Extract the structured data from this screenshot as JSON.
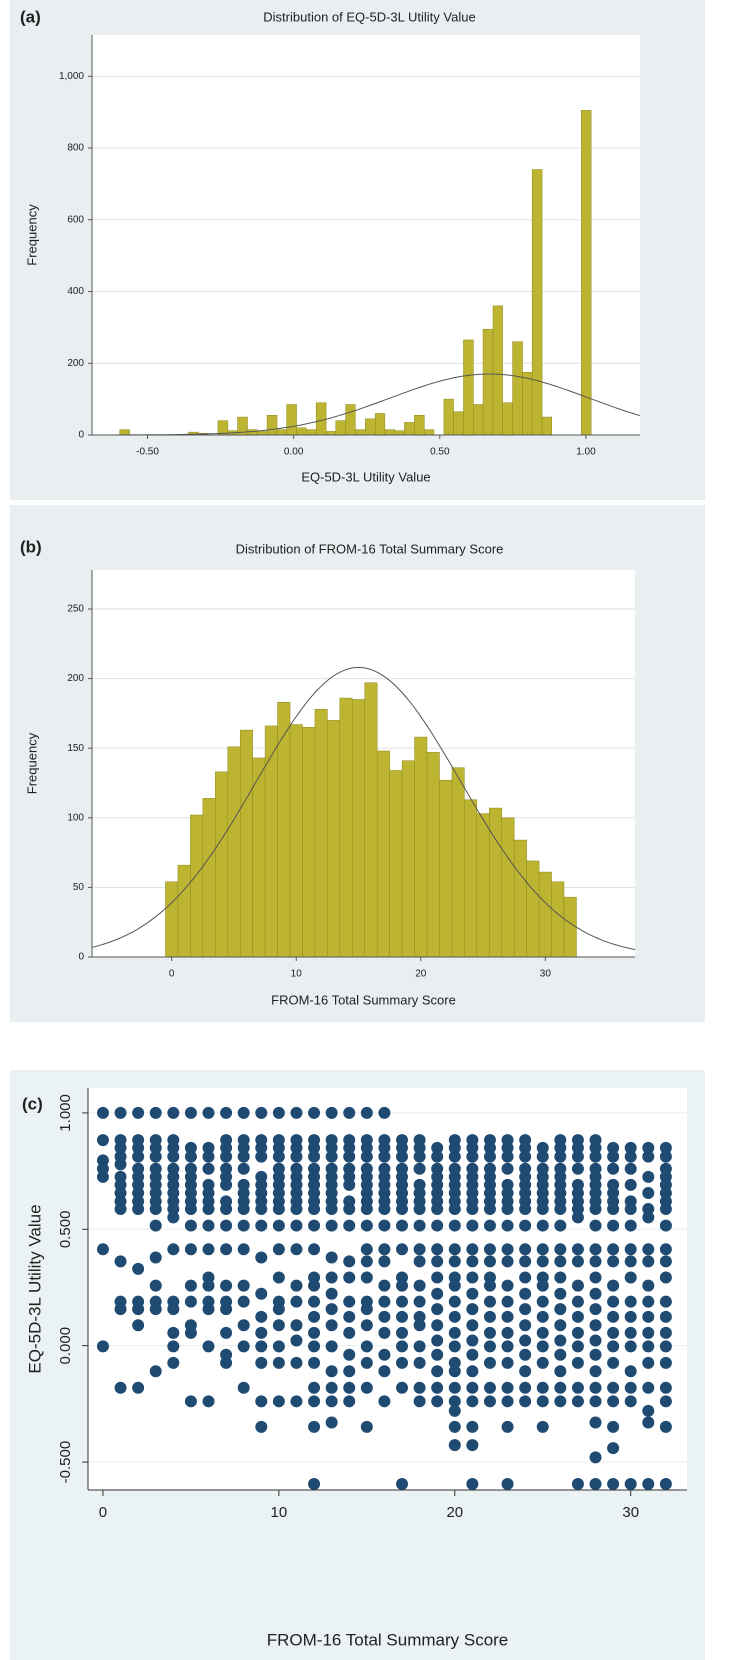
{
  "chart_data": [
    {
      "type": "histogram",
      "panel_label": "(a)",
      "title": "Distribution of EQ-5D-3L Utility Value",
      "x_label": "EQ-5D-3L Utility Value",
      "y_label": "Frequency",
      "color": "#bdb531",
      "curve_color": "#555555",
      "bins": [
        -0.595,
        -0.561,
        -0.528,
        -0.494,
        -0.461,
        -0.427,
        -0.393,
        -0.36,
        -0.326,
        -0.293,
        -0.259,
        -0.225,
        -0.192,
        -0.158,
        -0.125,
        -0.091,
        -0.057,
        -0.024,
        0.01,
        0.043,
        0.077,
        0.111,
        0.144,
        0.178,
        0.211,
        0.245,
        0.279,
        0.312,
        0.346,
        0.379,
        0.413,
        0.447,
        0.48,
        0.514,
        0.547,
        0.581,
        0.615,
        0.648,
        0.682,
        0.715,
        0.749,
        0.783,
        0.816,
        0.85,
        0.883,
        0.917,
        0.951,
        0.984,
        1.018,
        1.051
      ],
      "values": [
        15,
        0,
        0,
        0,
        0,
        0,
        0,
        8,
        5,
        0,
        40,
        12,
        50,
        15,
        10,
        55,
        15,
        85,
        20,
        15,
        90,
        10,
        40,
        85,
        15,
        45,
        60,
        15,
        12,
        35,
        55,
        15,
        0,
        100,
        65,
        265,
        85,
        295,
        360,
        90,
        260,
        175,
        740,
        50,
        0,
        0,
        0,
        905,
        0
      ],
      "curve": {
        "mean": 0.67,
        "sd": 0.34,
        "peak": 170
      },
      "xlim": [
        -0.69,
        1.185
      ],
      "ylim": [
        0,
        1115
      ],
      "xticks": [
        {
          "value": -0.5,
          "label": "-0.50"
        },
        {
          "value": 0,
          "label": "0.00"
        },
        {
          "value": 0.5,
          "label": "0.50"
        },
        {
          "value": 1,
          "label": "1.00"
        }
      ],
      "yticks": [
        0,
        200,
        400,
        600,
        800,
        {
          "value": 1000,
          "label": "1,000"
        }
      ],
      "grid": true
    },
    {
      "type": "histogram",
      "panel_label": "(b)",
      "title": "Distribution of FROM-16 Total Summary Score",
      "x_label": "FROM-16 Total Summary Score",
      "y_label": "Frequency",
      "color": "#bdb531",
      "curve_color": "#555555",
      "bins": [
        -0.5,
        0.5,
        1.5,
        2.5,
        3.5,
        4.5,
        5.5,
        6.5,
        7.5,
        8.5,
        9.5,
        10.5,
        11.5,
        12.5,
        13.5,
        14.5,
        15.5,
        16.5,
        17.5,
        18.5,
        19.5,
        20.5,
        21.5,
        22.5,
        23.5,
        24.5,
        25.5,
        26.5,
        27.5,
        28.5,
        29.5,
        30.5,
        31.5,
        32.5
      ],
      "values": [
        54,
        66,
        102,
        114,
        133,
        151,
        163,
        143,
        166,
        183,
        167,
        165,
        178,
        170,
        186,
        185,
        197,
        148,
        134,
        141,
        158,
        147,
        127,
        136,
        113,
        103,
        107,
        100,
        84,
        69,
        61,
        54,
        43
      ],
      "curve": {
        "mean": 15,
        "sd": 8.2,
        "peak": 208
      },
      "xlim": [
        -6.4,
        37.2
      ],
      "ylim": [
        0,
        278
      ],
      "xticks": [
        0,
        10,
        20,
        30
      ],
      "yticks": [
        0,
        50,
        100,
        150,
        200,
        250
      ],
      "grid": true
    },
    {
      "type": "scatter",
      "panel_label": "(c)",
      "x_label": "FROM-16 Total Summary Score",
      "y_label": "EQ-5D-3L Utility Value",
      "color": "#1f4a72",
      "x": [
        0,
        1,
        2,
        3,
        4,
        5,
        6,
        7,
        8,
        9,
        10,
        11,
        12,
        13,
        14,
        15,
        16,
        17,
        18,
        19,
        20,
        21,
        22,
        23,
        24,
        25,
        26,
        27,
        28,
        29,
        30,
        31,
        32
      ],
      "values": [
        [
          1.0,
          0.883,
          0.796,
          0.76,
          0.725,
          0.414,
          -0.003
        ],
        [
          1.0,
          0.883,
          0.85,
          0.812,
          0.779,
          0.725,
          0.691,
          0.656,
          0.62,
          0.587,
          0.362,
          0.189,
          0.157,
          -0.181
        ],
        [
          1.0,
          0.883,
          0.85,
          0.812,
          0.76,
          0.725,
          0.691,
          0.656,
          0.62,
          0.587,
          0.33,
          0.189,
          0.157,
          0.088,
          -0.181
        ],
        [
          1.0,
          0.883,
          0.85,
          0.812,
          0.76,
          0.725,
          0.691,
          0.656,
          0.62,
          0.587,
          0.516,
          0.379,
          0.258,
          0.189,
          0.157,
          -0.11
        ],
        [
          1.0,
          0.883,
          0.85,
          0.812,
          0.76,
          0.725,
          0.691,
          0.656,
          0.62,
          0.587,
          0.551,
          0.414,
          0.189,
          0.157,
          0.055,
          -0.003,
          -0.074
        ],
        [
          1.0,
          0.85,
          0.812,
          0.76,
          0.725,
          0.691,
          0.656,
          0.62,
          0.587,
          0.516,
          0.414,
          0.258,
          0.189,
          0.088,
          0.055,
          -0.239
        ],
        [
          1.0,
          0.85,
          0.812,
          0.76,
          0.691,
          0.656,
          0.62,
          0.587,
          0.516,
          0.414,
          0.293,
          0.258,
          0.189,
          0.157,
          -0.003,
          -0.239
        ],
        [
          1.0,
          0.883,
          0.85,
          0.812,
          0.76,
          0.725,
          0.691,
          0.62,
          0.587,
          0.516,
          0.414,
          0.258,
          0.189,
          0.157,
          0.055,
          -0.039,
          -0.074
        ],
        [
          1.0,
          0.883,
          0.85,
          0.812,
          0.76,
          0.691,
          0.656,
          0.62,
          0.587,
          0.516,
          0.414,
          0.258,
          0.189,
          0.088,
          -0.003,
          -0.181
        ],
        [
          1.0,
          0.883,
          0.85,
          0.812,
          0.725,
          0.691,
          0.656,
          0.62,
          0.587,
          0.516,
          0.379,
          0.223,
          0.124,
          0.055,
          -0.003,
          -0.074,
          -0.239,
          -0.349
        ],
        [
          1.0,
          0.883,
          0.85,
          0.812,
          0.76,
          0.725,
          0.691,
          0.656,
          0.62,
          0.587,
          0.516,
          0.414,
          0.293,
          0.189,
          0.157,
          0.088,
          -0.003,
          -0.074,
          -0.239
        ],
        [
          1.0,
          0.883,
          0.85,
          0.812,
          0.76,
          0.725,
          0.691,
          0.656,
          0.62,
          0.587,
          0.516,
          0.414,
          0.258,
          0.189,
          0.088,
          0.022,
          -0.074,
          -0.239
        ],
        [
          1.0,
          0.883,
          0.85,
          0.812,
          0.76,
          0.725,
          0.691,
          0.656,
          0.62,
          0.587,
          0.516,
          0.414,
          0.293,
          0.258,
          0.189,
          0.124,
          0.055,
          -0.003,
          -0.074,
          -0.181,
          -0.239,
          -0.349,
          -0.594
        ],
        [
          1.0,
          0.883,
          0.85,
          0.812,
          0.76,
          0.725,
          0.691,
          0.656,
          0.62,
          0.587,
          0.516,
          0.379,
          0.293,
          0.223,
          0.157,
          0.088,
          -0.003,
          -0.11,
          -0.181,
          -0.239,
          -0.33
        ],
        [
          1.0,
          0.883,
          0.85,
          0.812,
          0.76,
          0.725,
          0.691,
          0.62,
          0.587,
          0.516,
          0.362,
          0.293,
          0.189,
          0.124,
          0.055,
          -0.039,
          -0.11,
          -0.181,
          -0.239
        ],
        [
          1.0,
          0.883,
          0.85,
          0.812,
          0.76,
          0.725,
          0.691,
          0.656,
          0.62,
          0.587,
          0.516,
          0.414,
          0.362,
          0.293,
          0.189,
          0.157,
          0.088,
          -0.003,
          -0.074,
          -0.181,
          -0.349
        ],
        [
          1.0,
          0.883,
          0.85,
          0.812,
          0.76,
          0.725,
          0.691,
          0.656,
          0.62,
          0.587,
          0.516,
          0.414,
          0.362,
          0.258,
          0.189,
          0.124,
          0.055,
          -0.039,
          -0.11,
          -0.239
        ],
        [
          0.883,
          0.85,
          0.812,
          0.76,
          0.725,
          0.691,
          0.656,
          0.62,
          0.587,
          0.516,
          0.414,
          0.293,
          0.258,
          0.189,
          0.124,
          0.055,
          -0.003,
          -0.074,
          -0.181,
          -0.594
        ],
        [
          0.883,
          0.85,
          0.812,
          0.76,
          0.691,
          0.656,
          0.62,
          0.587,
          0.516,
          0.414,
          0.362,
          0.258,
          0.189,
          0.124,
          0.088,
          -0.003,
          -0.074,
          -0.181,
          -0.239
        ],
        [
          0.85,
          0.812,
          0.76,
          0.725,
          0.691,
          0.656,
          0.62,
          0.587,
          0.516,
          0.414,
          0.362,
          0.293,
          0.223,
          0.157,
          0.088,
          0.022,
          -0.039,
          -0.11,
          -0.181,
          -0.239
        ],
        [
          0.883,
          0.85,
          0.812,
          0.76,
          0.725,
          0.691,
          0.656,
          0.62,
          0.587,
          0.516,
          0.414,
          0.362,
          0.293,
          0.258,
          0.189,
          0.124,
          0.055,
          -0.003,
          -0.074,
          -0.11,
          -0.181,
          -0.239,
          -0.28,
          -0.349,
          -0.427
        ],
        [
          0.883,
          0.85,
          0.812,
          0.76,
          0.725,
          0.691,
          0.656,
          0.62,
          0.587,
          0.516,
          0.414,
          0.362,
          0.293,
          0.223,
          0.157,
          0.088,
          0.022,
          -0.039,
          -0.11,
          -0.181,
          -0.239,
          -0.349,
          -0.427,
          -0.594
        ],
        [
          0.883,
          0.85,
          0.812,
          0.76,
          0.725,
          0.691,
          0.656,
          0.62,
          0.587,
          0.516,
          0.414,
          0.362,
          0.293,
          0.258,
          0.189,
          0.124,
          0.055,
          -0.003,
          -0.074,
          -0.181,
          -0.239
        ],
        [
          0.883,
          0.85,
          0.812,
          0.76,
          0.691,
          0.656,
          0.62,
          0.587,
          0.516,
          0.414,
          0.362,
          0.258,
          0.189,
          0.124,
          0.055,
          -0.003,
          -0.074,
          -0.181,
          -0.239,
          -0.349,
          -0.594
        ],
        [
          0.883,
          0.85,
          0.812,
          0.76,
          0.725,
          0.691,
          0.656,
          0.62,
          0.587,
          0.516,
          0.414,
          0.362,
          0.293,
          0.223,
          0.157,
          0.088,
          0.022,
          -0.039,
          -0.11,
          -0.181,
          -0.239
        ],
        [
          0.85,
          0.812,
          0.76,
          0.725,
          0.691,
          0.656,
          0.62,
          0.587,
          0.516,
          0.414,
          0.362,
          0.293,
          0.258,
          0.189,
          0.124,
          0.055,
          -0.003,
          -0.074,
          -0.181,
          -0.239,
          -0.349
        ],
        [
          0.883,
          0.85,
          0.812,
          0.76,
          0.725,
          0.691,
          0.656,
          0.62,
          0.587,
          0.516,
          0.414,
          0.362,
          0.293,
          0.223,
          0.157,
          0.088,
          0.022,
          -0.039,
          -0.11,
          -0.181,
          -0.239
        ],
        [
          0.883,
          0.85,
          0.812,
          0.76,
          0.691,
          0.656,
          0.62,
          0.587,
          0.551,
          0.414,
          0.362,
          0.258,
          0.189,
          0.124,
          0.055,
          -0.003,
          -0.074,
          -0.181,
          -0.239,
          -0.594
        ],
        [
          0.883,
          0.85,
          0.812,
          0.76,
          0.725,
          0.691,
          0.656,
          0.62,
          0.587,
          0.516,
          0.414,
          0.362,
          0.293,
          0.223,
          0.157,
          0.088,
          0.022,
          -0.039,
          -0.11,
          -0.181,
          -0.239,
          -0.33,
          -0.48,
          -0.594
        ],
        [
          0.85,
          0.812,
          0.76,
          0.691,
          0.656,
          0.62,
          0.587,
          0.516,
          0.414,
          0.362,
          0.258,
          0.189,
          0.124,
          0.055,
          -0.003,
          -0.074,
          -0.181,
          -0.239,
          -0.349,
          -0.44,
          -0.594
        ],
        [
          0.85,
          0.812,
          0.76,
          0.691,
          0.62,
          0.587,
          0.516,
          0.414,
          0.362,
          0.293,
          0.189,
          0.124,
          0.055,
          -0.003,
          -0.11,
          -0.181,
          -0.239,
          -0.594
        ],
        [
          0.85,
          0.812,
          0.725,
          0.656,
          0.587,
          0.551,
          0.414,
          0.362,
          0.258,
          0.189,
          0.124,
          0.055,
          -0.003,
          -0.074,
          -0.181,
          -0.28,
          -0.33,
          -0.594
        ],
        [
          0.85,
          0.812,
          0.76,
          0.725,
          0.691,
          0.656,
          0.62,
          0.587,
          0.516,
          0.414,
          0.362,
          0.293,
          0.189,
          0.124,
          0.055,
          -0.003,
          -0.074,
          -0.181,
          -0.239,
          -0.349,
          -0.594
        ]
      ],
      "xlim": [
        -0.85,
        33.2
      ],
      "ylim": [
        -0.62,
        1.107
      ],
      "xticks": [
        0,
        10,
        20,
        30
      ],
      "yticks": [
        {
          "value": -0.5,
          "label": "-0.500"
        },
        {
          "value": 0,
          "label": "0.000"
        },
        {
          "value": 0.5,
          "label": "0.500"
        },
        {
          "value": 1,
          "label": "1.000"
        }
      ],
      "grid": true
    }
  ]
}
